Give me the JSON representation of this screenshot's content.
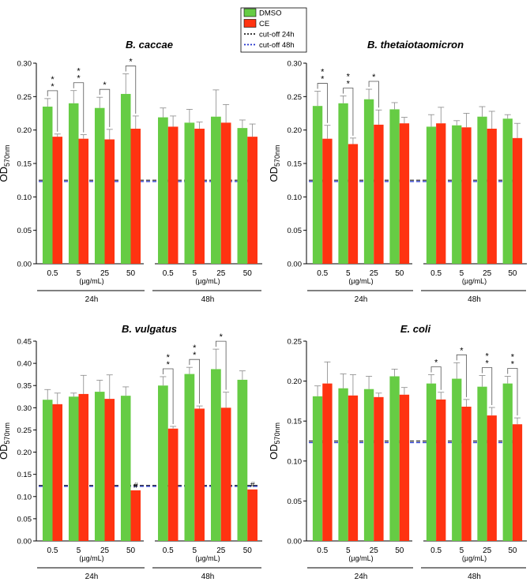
{
  "legend": {
    "entries": [
      {
        "label": "DMSO",
        "kind": "box",
        "color": "#66cc44"
      },
      {
        "label": "CE",
        "kind": "box",
        "color": "#ff3311"
      },
      {
        "label": "cut-off 24h",
        "kind": "dots",
        "color": "#222222"
      },
      {
        "label": "cut-off 48h",
        "kind": "dots",
        "color": "#2233cc"
      }
    ]
  },
  "colors": {
    "dmso": "#66cc44",
    "ce": "#ff3311",
    "cutoff24": "#222222",
    "cutoff48": "#2233cc",
    "axis": "#000000"
  },
  "chart_data": [
    {
      "type": "bar",
      "title": "B. caccae",
      "ylabel": "OD",
      "ylabel_sub": "570nm",
      "ylim": [
        0,
        0.3
      ],
      "yticks": [
        0.0,
        0.05,
        0.1,
        0.15,
        0.2,
        0.25,
        0.3
      ],
      "categories": [
        "0.5",
        "5",
        "25",
        "50"
      ],
      "unit_label": "(µg/mL)",
      "groups": [
        "24h",
        "48h"
      ],
      "series": [
        {
          "name": "DMSO",
          "values": [
            [
              0.235,
              0.24,
              0.233,
              0.254
            ],
            [
              0.219,
              0.211,
              0.22,
              0.203
            ]
          ],
          "errors": [
            [
              0.012,
              0.019,
              0.016,
              0.03
            ],
            [
              0.014,
              0.02,
              0.04,
              0.012
            ]
          ]
        },
        {
          "name": "CE",
          "values": [
            [
              0.19,
              0.187,
              0.186,
              0.202
            ],
            [
              0.205,
              0.202,
              0.211,
              0.19
            ]
          ],
          "errors": [
            [
              0.004,
              0.006,
              0.015,
              0.019
            ],
            [
              0.016,
              0.01,
              0.027,
              0.019
            ]
          ]
        }
      ],
      "significance": [
        [
          "**",
          "**",
          "*",
          "*"
        ],
        [
          "",
          "",
          "",
          ""
        ]
      ],
      "hash": [
        [
          "",
          "",
          "",
          ""
        ],
        [
          "",
          "",
          "",
          ""
        ]
      ],
      "cutoff_24h": 0.125,
      "cutoff_48h": 0.123
    },
    {
      "type": "bar",
      "title": "B. thetaiotaomicron",
      "ylabel": "OD",
      "ylabel_sub": "570nm",
      "ylim": [
        0,
        0.3
      ],
      "yticks": [
        0.0,
        0.05,
        0.1,
        0.15,
        0.2,
        0.25,
        0.3
      ],
      "categories": [
        "0.5",
        "5",
        "25",
        "50"
      ],
      "unit_label": "(µg/mL)",
      "groups": [
        "24h",
        "48h"
      ],
      "series": [
        {
          "name": "DMSO",
          "values": [
            [
              0.236,
              0.24,
              0.246,
              0.231
            ],
            [
              0.205,
              0.207,
              0.22,
              0.217
            ]
          ],
          "errors": [
            [
              0.022,
              0.011,
              0.015,
              0.01
            ],
            [
              0.018,
              0.007,
              0.015,
              0.006
            ]
          ]
        },
        {
          "name": "CE",
          "values": [
            [
              0.187,
              0.179,
              0.208,
              0.21
            ],
            [
              0.21,
              0.204,
              0.202,
              0.188
            ]
          ],
          "errors": [
            [
              0.02,
              0.009,
              0.022,
              0.009
            ],
            [
              0.024,
              0.021,
              0.026,
              0.022
            ]
          ]
        }
      ],
      "significance": [
        [
          "**",
          "**",
          "*",
          ""
        ],
        [
          "",
          "",
          "",
          ""
        ]
      ],
      "hash": [
        [
          "",
          "",
          "",
          ""
        ],
        [
          "",
          "",
          "",
          ""
        ]
      ],
      "cutoff_24h": 0.125,
      "cutoff_48h": 0.123
    },
    {
      "type": "bar",
      "title": "B. vulgatus",
      "ylabel": "OD",
      "ylabel_sub": "570nm",
      "ylim": [
        0,
        0.45
      ],
      "yticks": [
        0.0,
        0.05,
        0.1,
        0.15,
        0.2,
        0.25,
        0.3,
        0.35,
        0.4,
        0.45
      ],
      "categories": [
        "0.5",
        "5",
        "25",
        "50"
      ],
      "unit_label": "(µg/mL)",
      "groups": [
        "24h",
        "48h"
      ],
      "series": [
        {
          "name": "DMSO",
          "values": [
            [
              0.318,
              0.325,
              0.336,
              0.327
            ],
            [
              0.35,
              0.376,
              0.387,
              0.363
            ]
          ],
          "errors": [
            [
              0.023,
              0.008,
              0.026,
              0.02
            ],
            [
              0.02,
              0.015,
              0.045,
              0.02
            ]
          ]
        },
        {
          "name": "CE",
          "values": [
            [
              0.308,
              0.331,
              0.32,
              0.114
            ],
            [
              0.253,
              0.298,
              0.3,
              0.116
            ]
          ],
          "errors": [
            [
              0.025,
              0.042,
              0.054,
              0.0
            ],
            [
              0.005,
              0.006,
              0.035,
              0.0
            ]
          ]
        }
      ],
      "significance": [
        [
          "",
          "",
          "",
          ""
        ],
        [
          "**",
          "**",
          "*",
          ""
        ]
      ],
      "hash": [
        [
          "",
          "",
          "",
          "#"
        ],
        [
          "",
          "",
          "",
          "#"
        ]
      ],
      "cutoff_24h": 0.125,
      "cutoff_48h": 0.123
    },
    {
      "type": "bar",
      "title": "E. coli",
      "ylabel": "OD",
      "ylabel_sub": "570nm",
      "ylim": [
        0,
        0.25
      ],
      "yticks": [
        0.0,
        0.05,
        0.1,
        0.15,
        0.2,
        0.25
      ],
      "categories": [
        "0.5",
        "5",
        "25",
        "50"
      ],
      "unit_label": "(µg/mL)",
      "groups": [
        "24h",
        "48h"
      ],
      "series": [
        {
          "name": "DMSO",
          "values": [
            [
              0.181,
              0.191,
              0.19,
              0.206
            ],
            [
              0.197,
              0.203,
              0.193,
              0.197
            ]
          ],
          "errors": [
            [
              0.013,
              0.018,
              0.016,
              0.009
            ],
            [
              0.011,
              0.02,
              0.014,
              0.009
            ]
          ]
        },
        {
          "name": "CE",
          "values": [
            [
              0.197,
              0.182,
              0.18,
              0.183
            ],
            [
              0.177,
              0.168,
              0.157,
              0.146
            ]
          ],
          "errors": [
            [
              0.027,
              0.026,
              0.005,
              0.009
            ],
            [
              0.009,
              0.009,
              0.01,
              0.008
            ]
          ]
        }
      ],
      "significance": [
        [
          "",
          "",
          "",
          ""
        ],
        [
          "*",
          "*",
          "**",
          "**"
        ]
      ],
      "hash": [
        [
          "",
          "",
          "",
          ""
        ],
        [
          "",
          "",
          "",
          ""
        ]
      ],
      "cutoff_24h": 0.125,
      "cutoff_48h": 0.123
    }
  ]
}
